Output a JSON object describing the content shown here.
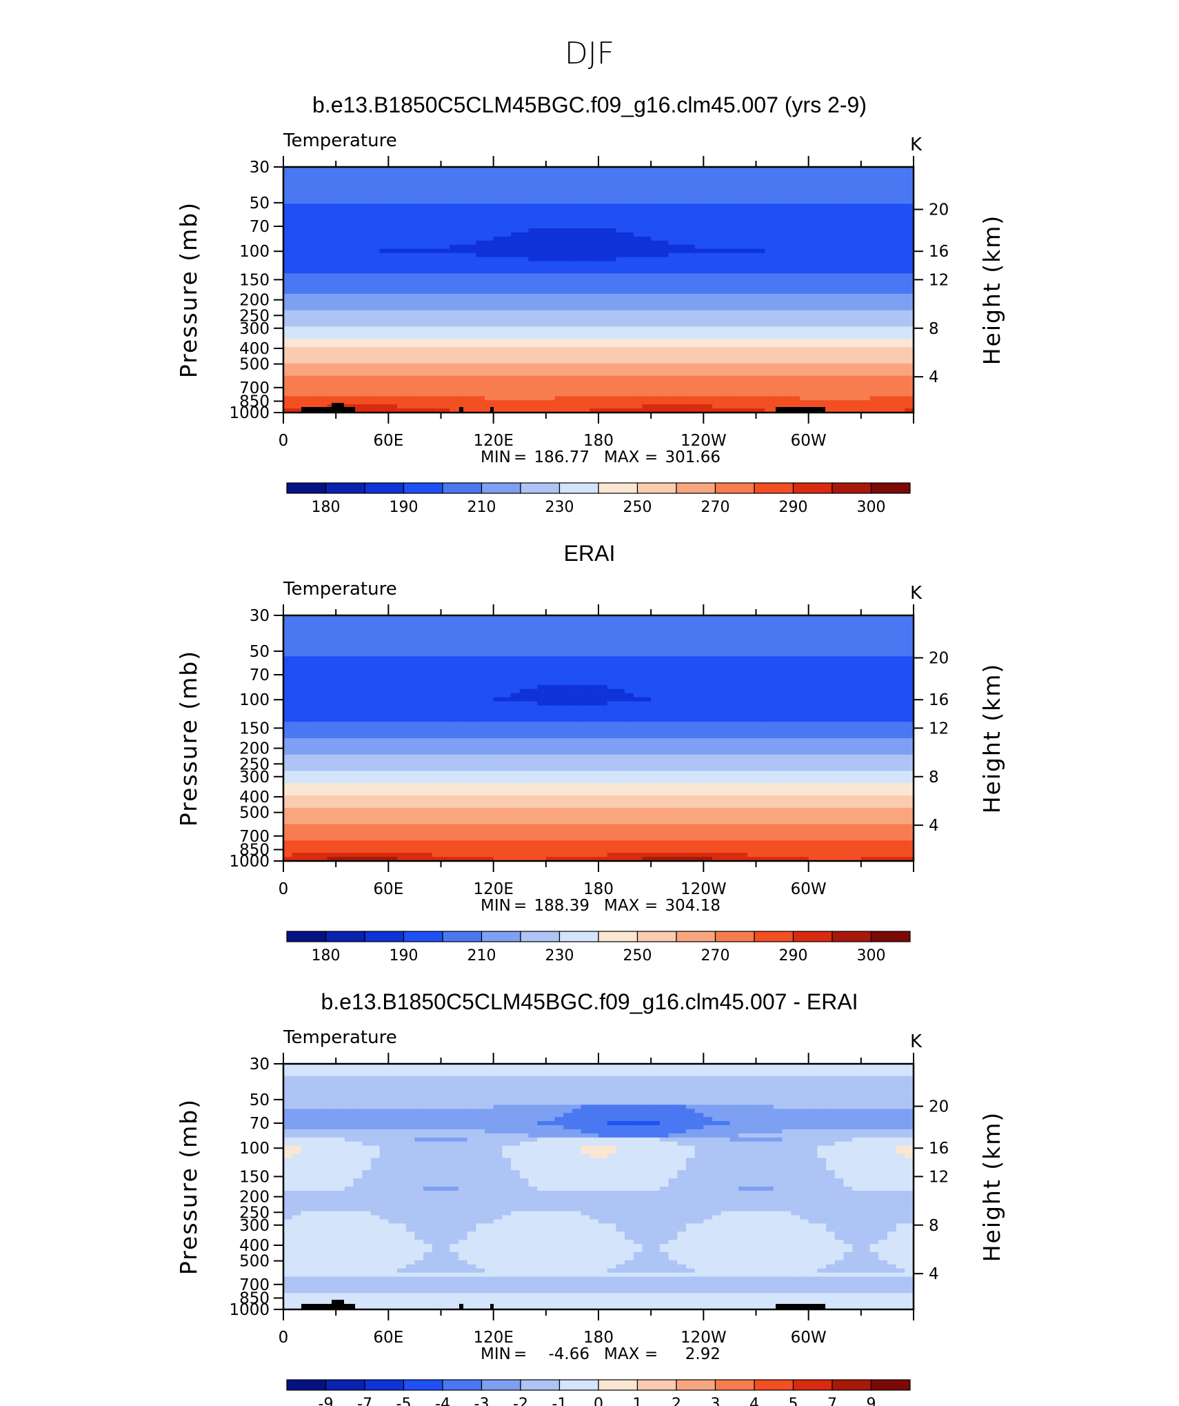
{
  "page": {
    "title": "DJF"
  },
  "axes_common": {
    "x_ticks": [
      "0",
      "60E",
      "120E",
      "180",
      "120W",
      "60W"
    ],
    "y_pressure_ticks": [
      "30",
      "50",
      "70",
      "100",
      "150",
      "200",
      "250",
      "300",
      "400",
      "500",
      "700",
      "850",
      "1000"
    ],
    "y_height_ticks": [
      "20",
      "16",
      "12",
      "8",
      "4"
    ],
    "ylabel_left": "Pressure (mb)",
    "ylabel_right": "Height (km)",
    "variable": "Temperature",
    "units": "K"
  },
  "colors": {
    "abs": [
      "#051382",
      "#0a22b0",
      "#0f32d9",
      "#1f4ff5",
      "#4a78f2",
      "#7ea0f2",
      "#adc4f5",
      "#d4e4fa",
      "#fbe6d3",
      "#fbcbb0",
      "#f9a680",
      "#f77d50",
      "#f24f23",
      "#d92b0f",
      "#a8190a",
      "#7b0a05"
    ],
    "diff": [
      "#051382",
      "#0a22b0",
      "#0f32d9",
      "#1f4ff5",
      "#4a78f2",
      "#7ea0f2",
      "#adc4f5",
      "#d4e4fa",
      "#fbe6d3",
      "#fbcbb0",
      "#f9a680",
      "#f77d50",
      "#f24f23",
      "#d92b0f",
      "#a8190a",
      "#7b0a05"
    ],
    "topography": "#000000"
  },
  "chart_data": [
    {
      "type": "heatmap",
      "title": "b.e13.B1850C5CLM45BGC.f09_g16.clm45.007 (yrs 2-9)",
      "subtitle": "Temperature",
      "units": "K",
      "stats_min_label": "MIN",
      "stats_max_label": "MAX",
      "min": "186.77",
      "max": "301.66",
      "colorbar_ticks": [
        "180",
        "190",
        "210",
        "230",
        "250",
        "270",
        "290",
        "300"
      ],
      "xlim": [
        0,
        360
      ],
      "ylim_pressure": [
        1000,
        30
      ],
      "pressure_levels": [
        1000,
        850,
        700,
        500,
        400,
        300,
        250,
        200,
        150,
        100,
        70,
        50,
        30
      ],
      "zonal_profile_K": [
        292,
        284,
        276,
        262,
        250,
        232,
        224,
        214,
        202,
        190,
        194,
        200,
        206
      ]
    },
    {
      "type": "heatmap",
      "title": "ERAI",
      "subtitle": "Temperature",
      "units": "K",
      "stats_min_label": "MIN",
      "stats_max_label": "MAX",
      "min": "188.39",
      "max": "304.18",
      "colorbar_ticks": [
        "180",
        "190",
        "210",
        "230",
        "250",
        "270",
        "290",
        "300"
      ],
      "xlim": [
        0,
        360
      ],
      "ylim_pressure": [
        1000,
        30
      ],
      "pressure_levels": [
        1000,
        850,
        700,
        500,
        400,
        300,
        250,
        200,
        150,
        100,
        70,
        50,
        30
      ],
      "zonal_profile_K": [
        294,
        286,
        278,
        264,
        252,
        234,
        226,
        216,
        203,
        192,
        195,
        201,
        208
      ]
    },
    {
      "type": "heatmap",
      "title": "b.e13.B1850C5CLM45BGC.f09_g16.clm45.007 - ERAI",
      "subtitle": "Temperature",
      "units": "K",
      "stats_min_label": "MIN",
      "stats_max_label": "MAX",
      "min": "-4.66",
      "max": "2.92",
      "colorbar_ticks": [
        "-9",
        "-7",
        "-5",
        "-4",
        "-3",
        "-2",
        "-1",
        "0",
        "1",
        "2",
        "3",
        "4",
        "5",
        "7",
        "9"
      ],
      "xlim": [
        0,
        360
      ],
      "ylim_pressure": [
        1000,
        30
      ],
      "pressure_levels": [
        1000,
        850,
        700,
        500,
        400,
        300,
        250,
        200,
        150,
        100,
        70,
        50,
        30
      ],
      "zonal_profile_K": [
        -0.5,
        -0.8,
        -1.2,
        -0.6,
        -0.5,
        -0.8,
        -1.3,
        -1.4,
        -1.0,
        -0.7,
        -2.5,
        -1.6,
        -0.6
      ]
    }
  ]
}
